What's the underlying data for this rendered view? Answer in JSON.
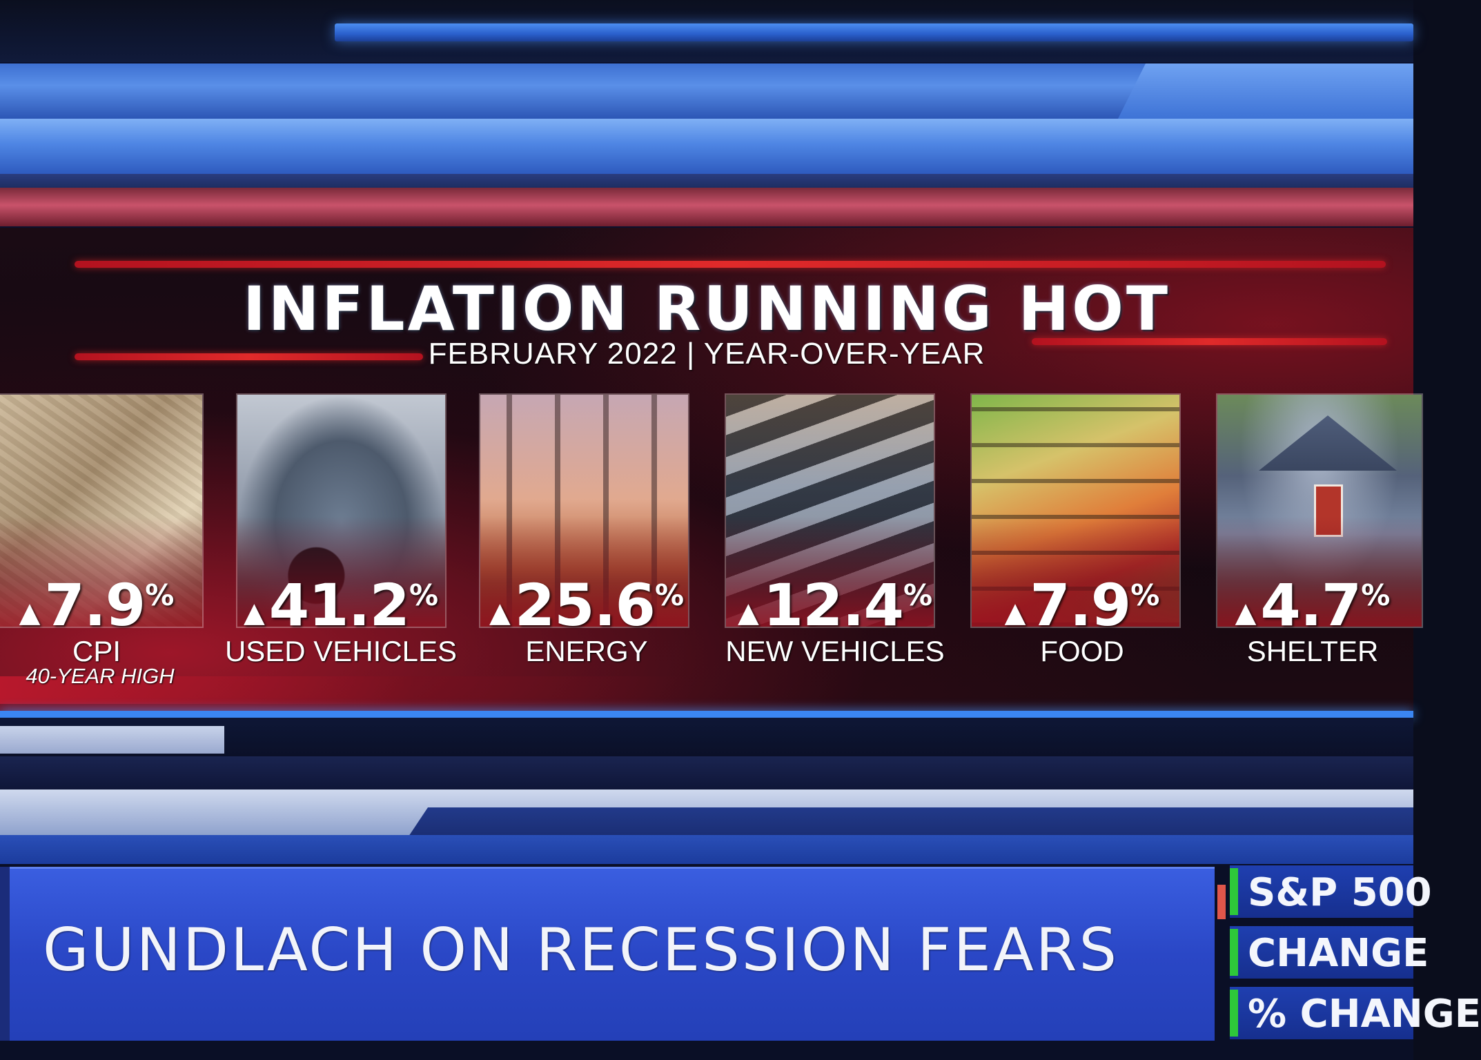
{
  "graphic": {
    "title": "INFLATION RUNNING HOT",
    "subtitle": "FEBRUARY 2022 | YEAR-OVER-YEAR",
    "items": [
      {
        "value": "7.9",
        "unit": "%",
        "label": "CPI",
        "sublabel": "40-YEAR HIGH",
        "image": "money-photo"
      },
      {
        "value": "41.2",
        "unit": "%",
        "label": "USED VEHICLES",
        "image": "car-photo"
      },
      {
        "value": "25.6",
        "unit": "%",
        "label": "ENERGY",
        "image": "refinery-photo"
      },
      {
        "value": "12.4",
        "unit": "%",
        "label": "NEW VEHICLES",
        "image": "car-lot-photo"
      },
      {
        "value": "7.9",
        "unit": "%",
        "label": "FOOD",
        "image": "grocery-photo"
      },
      {
        "value": "4.7",
        "unit": "%",
        "label": "SHELTER",
        "image": "house-photo"
      }
    ],
    "arrow_icon": "up-triangle-icon"
  },
  "chyron": {
    "headline": "GUNDLACH ON RECESSION FEARS"
  },
  "ticker": {
    "rows": [
      "S&P 500",
      "CHANGE",
      "% CHANGE"
    ]
  },
  "colors": {
    "accent_red": "#e02a2a",
    "chyron_blue": "#2a47c6",
    "ticker_green": "#2ec83a"
  }
}
